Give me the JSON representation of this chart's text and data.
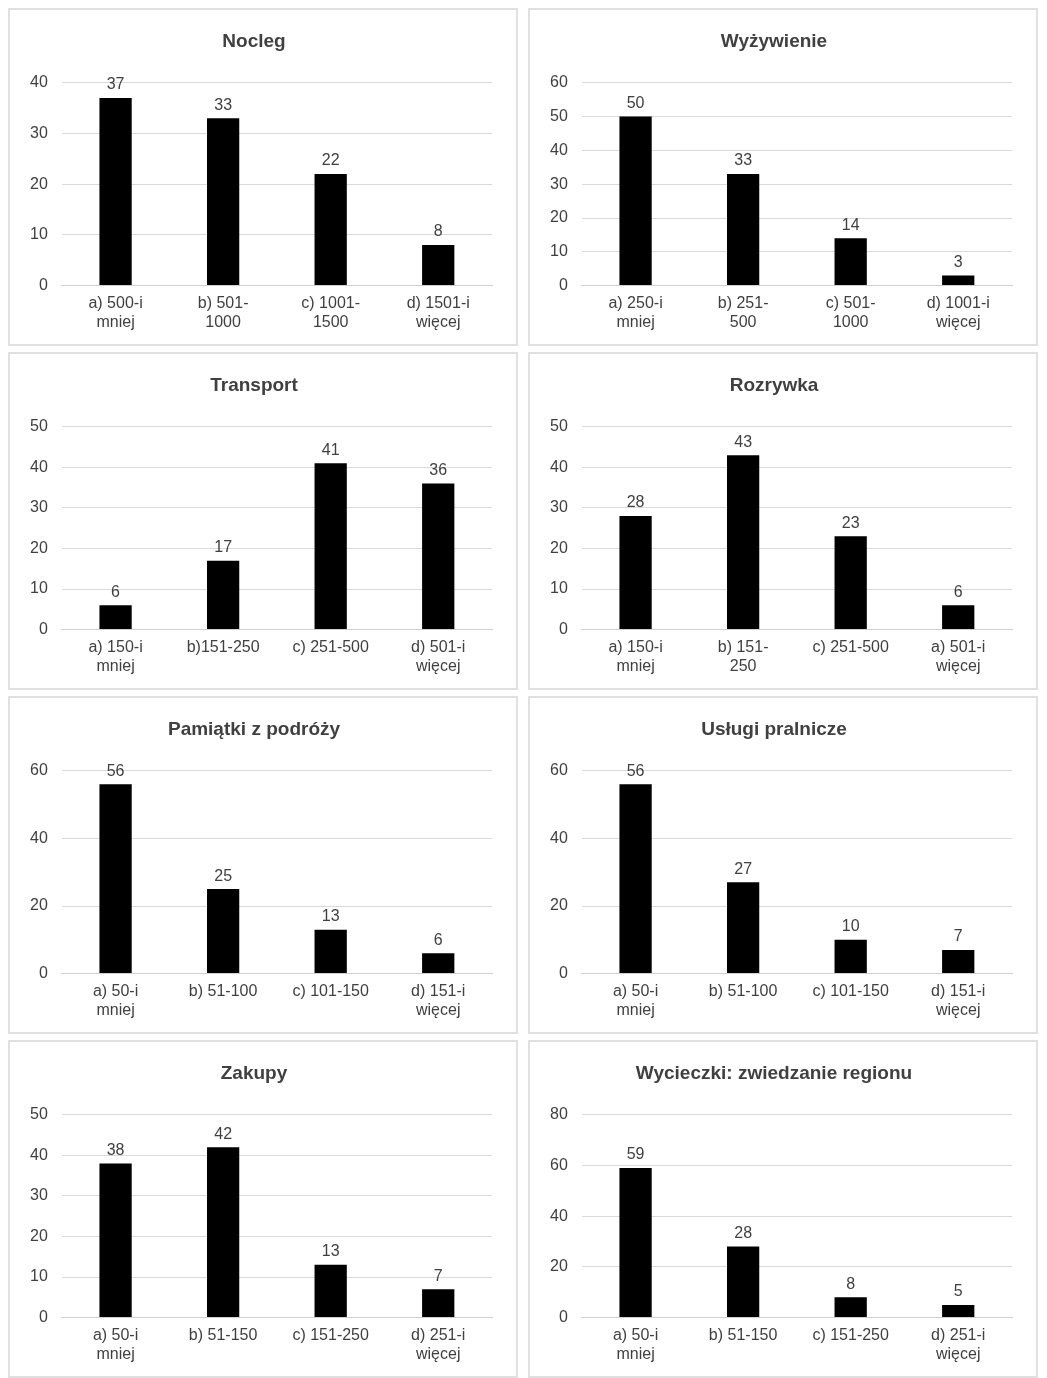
{
  "chart_data": [
    {
      "type": "bar",
      "title": "Nocleg",
      "categories": [
        "a) 500-i\nmniej",
        "b) 501-\n1000",
        "c) 1001-\n1500",
        "d) 1501-i\nwięcej"
      ],
      "values": [
        37,
        33,
        22,
        8
      ],
      "color": "#000000",
      "ylim": [
        0,
        40
      ],
      "yticks": [
        0,
        10,
        20,
        30,
        40
      ],
      "grid": "y",
      "data_labels": true
    },
    {
      "type": "bar",
      "title": "Wyżywienie",
      "categories": [
        "a) 250-i\nmniej",
        "b) 251-\n500",
        "c) 501-\n1000",
        "d) 1001-i\nwięcej"
      ],
      "values": [
        50,
        33,
        14,
        3
      ],
      "color": "#000000",
      "ylim": [
        0,
        60
      ],
      "yticks": [
        0,
        10,
        20,
        30,
        40,
        50,
        60
      ],
      "grid": "y",
      "data_labels": true
    },
    {
      "type": "bar",
      "title": "Transport",
      "categories": [
        "a) 150-i\nmniej",
        "b)151-250",
        "c) 251-500",
        "d) 501-i\nwięcej"
      ],
      "values": [
        6,
        17,
        41,
        36
      ],
      "color": "#000000",
      "ylim": [
        0,
        50
      ],
      "yticks": [
        0,
        10,
        20,
        30,
        40,
        50
      ],
      "grid": "y",
      "data_labels": true
    },
    {
      "type": "bar",
      "title": "Rozrywka",
      "categories": [
        "a) 150-i\nmniej",
        "b) 151-\n250",
        "c) 251-500",
        "a) 501-i\nwięcej"
      ],
      "values": [
        28,
        43,
        23,
        6
      ],
      "color": "#000000",
      "ylim": [
        0,
        50
      ],
      "yticks": [
        0,
        10,
        20,
        30,
        40,
        50
      ],
      "grid": "y",
      "data_labels": true
    },
    {
      "type": "bar",
      "title": "Pamiątki z podróży",
      "categories": [
        "a) 50-i\nmniej",
        "b) 51-100",
        "c) 101-150",
        "d) 151-i\nwięcej"
      ],
      "values": [
        56,
        25,
        13,
        6
      ],
      "color": "#000000",
      "ylim": [
        0,
        60
      ],
      "yticks": [
        0,
        20,
        40,
        60
      ],
      "grid": "y",
      "data_labels": true
    },
    {
      "type": "bar",
      "title": "Usługi pralnicze",
      "categories": [
        "a) 50-i\nmniej",
        "b) 51-100",
        "c) 101-150",
        "d) 151-i\nwięcej"
      ],
      "values": [
        56,
        27,
        10,
        7
      ],
      "color": "#000000",
      "ylim": [
        0,
        60
      ],
      "yticks": [
        0,
        20,
        40,
        60
      ],
      "grid": "y",
      "data_labels": true
    },
    {
      "type": "bar",
      "title": "Zakupy",
      "categories": [
        "a) 50-i\nmniej",
        "b) 51-150",
        "c) 151-250",
        "d) 251-i\nwięcej"
      ],
      "values": [
        38,
        42,
        13,
        7
      ],
      "color": "#000000",
      "ylim": [
        0,
        50
      ],
      "yticks": [
        0,
        10,
        20,
        30,
        40,
        50
      ],
      "grid": "y",
      "data_labels": true
    },
    {
      "type": "bar",
      "title": "Wycieczki: zwiedzanie regionu",
      "categories": [
        "a) 50-i\nmniej",
        "b) 51-150",
        "c) 151-250",
        "d) 251-i\nwięcej"
      ],
      "values": [
        59,
        28,
        8,
        5
      ],
      "color": "#000000",
      "ylim": [
        0,
        80
      ],
      "yticks": [
        0,
        20,
        40,
        60,
        80
      ],
      "grid": "y",
      "data_labels": true
    }
  ]
}
